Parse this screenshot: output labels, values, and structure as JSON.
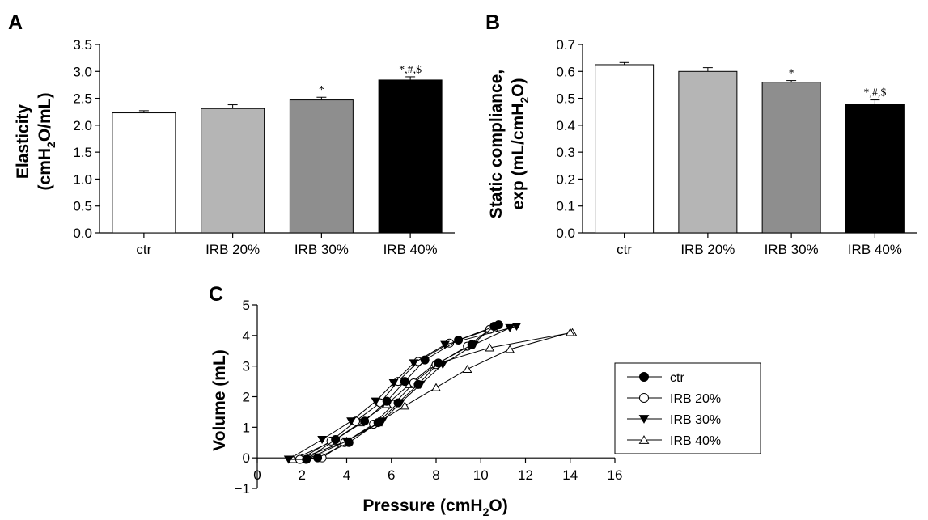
{
  "chart_data": [
    {
      "panel": "A",
      "type": "bar",
      "ylabel_line1": "Elasticity",
      "ylabel_line2_parts": [
        "(cmH",
        "2",
        "O/mL)"
      ],
      "categories": [
        "ctr",
        "IRB 20%",
        "IRB 30%",
        "IRB 40%"
      ],
      "values": [
        2.23,
        2.31,
        2.47,
        2.84
      ],
      "errors": [
        0.04,
        0.07,
        0.05,
        0.06
      ],
      "bar_colors": [
        "#ffffff",
        "#b5b5b5",
        "#8e8e8e",
        "#000000"
      ],
      "annotations": [
        "",
        "",
        "*",
        "*,#,$"
      ],
      "ylim": [
        0,
        3.5
      ],
      "yticks": [
        "0.0",
        "0.5",
        "1.0",
        "1.5",
        "2.0",
        "2.5",
        "3.0",
        "3.5"
      ]
    },
    {
      "panel": "B",
      "type": "bar",
      "ylabel_line1": "Static compliance,",
      "ylabel_line2_parts": [
        "exp (mL/cmH",
        "2",
        "O)"
      ],
      "categories": [
        "ctr",
        "IRB 20%",
        "IRB 30%",
        "IRB 40%"
      ],
      "values": [
        0.625,
        0.6,
        0.56,
        0.478
      ],
      "errors": [
        0.008,
        0.014,
        0.006,
        0.016
      ],
      "bar_colors": [
        "#ffffff",
        "#b5b5b5",
        "#8e8e8e",
        "#000000"
      ],
      "annotations": [
        "",
        "",
        "*",
        "*,#,$"
      ],
      "ylim": [
        0,
        0.7
      ],
      "yticks": [
        "0.0",
        "0.1",
        "0.2",
        "0.3",
        "0.4",
        "0.5",
        "0.6",
        "0.7"
      ]
    },
    {
      "panel": "C",
      "type": "line",
      "xlabel_parts": [
        "Pressure (cmH",
        "2",
        "O)"
      ],
      "ylabel": "Volume (mL)",
      "xlim": [
        0,
        16
      ],
      "ylim": [
        -1,
        5
      ],
      "xticks": [
        "0",
        "2",
        "4",
        "6",
        "8",
        "10",
        "12",
        "14",
        "16"
      ],
      "yticks": [
        "−1",
        "0",
        "1",
        "2",
        "3",
        "4",
        "5"
      ],
      "legend_position": "right",
      "series": [
        {
          "name": "ctr",
          "marker": "circle-filled",
          "points": [
            [
              2.2,
              -0.05
            ],
            [
              3.5,
              0.6
            ],
            [
              4.8,
              1.2
            ],
            [
              5.8,
              1.85
            ],
            [
              6.6,
              2.5
            ],
            [
              7.5,
              3.2
            ],
            [
              9.0,
              3.85
            ],
            [
              10.8,
              4.35
            ],
            [
              10.6,
              4.3
            ],
            [
              9.6,
              3.7
            ],
            [
              8.1,
              3.1
            ],
            [
              7.2,
              2.4
            ],
            [
              6.3,
              1.8
            ],
            [
              5.4,
              1.15
            ],
            [
              4.1,
              0.5
            ],
            [
              2.7,
              0.0
            ]
          ]
        },
        {
          "name": "IRB 20%",
          "marker": "circle-open",
          "points": [
            [
              1.9,
              -0.05
            ],
            [
              3.3,
              0.55
            ],
            [
              4.4,
              1.2
            ],
            [
              5.5,
              1.8
            ],
            [
              6.3,
              2.5
            ],
            [
              7.2,
              3.15
            ],
            [
              8.6,
              3.75
            ],
            [
              10.6,
              4.25
            ],
            [
              10.4,
              4.2
            ],
            [
              9.4,
              3.65
            ],
            [
              8.0,
              3.05
            ],
            [
              7.0,
              2.45
            ],
            [
              6.1,
              1.75
            ],
            [
              5.2,
              1.1
            ],
            [
              3.9,
              0.5
            ],
            [
              2.9,
              0.0
            ]
          ]
        },
        {
          "name": "IRB 30%",
          "marker": "triangle-down-filled",
          "points": [
            [
              1.4,
              -0.05
            ],
            [
              2.9,
              0.6
            ],
            [
              4.2,
              1.2
            ],
            [
              5.3,
              1.85
            ],
            [
              6.1,
              2.45
            ],
            [
              7.0,
              3.1
            ],
            [
              8.4,
              3.7
            ],
            [
              11.6,
              4.3
            ],
            [
              11.3,
              4.25
            ],
            [
              9.7,
              3.7
            ],
            [
              8.3,
              3.05
            ],
            [
              7.3,
              2.4
            ],
            [
              6.4,
              1.8
            ],
            [
              5.6,
              1.2
            ],
            [
              4.0,
              0.55
            ],
            [
              2.2,
              -0.05
            ]
          ]
        },
        {
          "name": "IRB 40%",
          "marker": "triangle-up-open",
          "points": [
            [
              1.6,
              -0.05
            ],
            [
              3.4,
              0.55
            ],
            [
              4.6,
              1.15
            ],
            [
              5.8,
              1.75
            ],
            [
              6.8,
              2.4
            ],
            [
              7.9,
              3.05
            ],
            [
              10.4,
              3.6
            ],
            [
              14.1,
              4.1
            ],
            [
              14.0,
              4.1
            ],
            [
              11.3,
              3.55
            ],
            [
              9.4,
              2.9
            ],
            [
              8.0,
              2.3
            ],
            [
              6.6,
              1.7
            ],
            [
              5.4,
              1.15
            ],
            [
              4.0,
              0.55
            ],
            [
              2.0,
              0.0
            ]
          ]
        }
      ]
    }
  ]
}
